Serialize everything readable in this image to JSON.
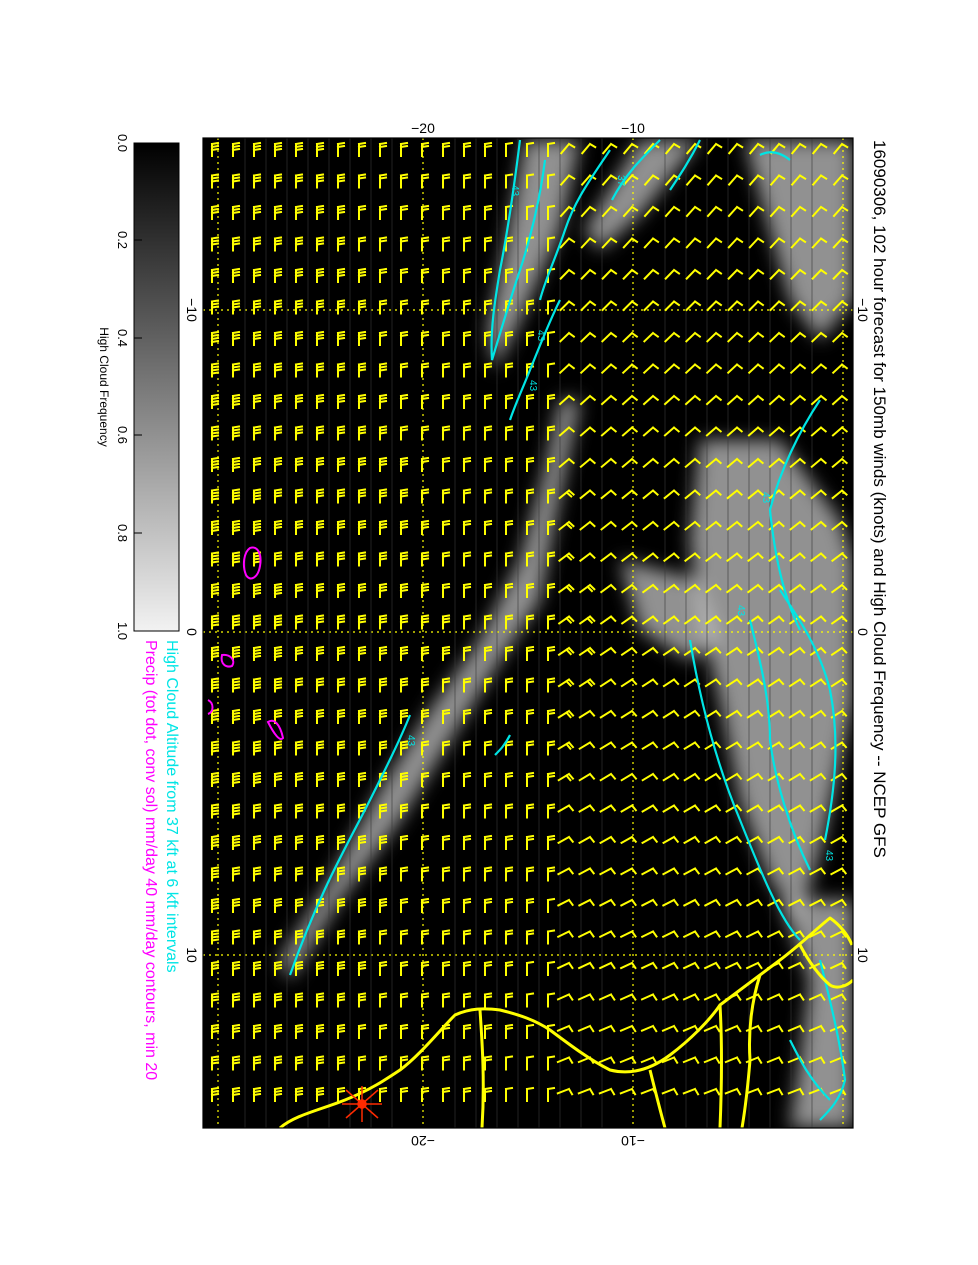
{
  "title": "16090306, 102 hour forecast for 150mb winds (knots) and High Cloud Frequency -- NCEP GFS",
  "legend_cloud_altitude": "High Cloud Altitude from 37 kft at 6 kft intervals",
  "legend_precip": "Precip (tot dot, conv sol) mm/day 40 mm/day contours, min 20",
  "colorbar": {
    "label": "High Cloud Frequency",
    "ticks": [
      "0.0",
      "0.2",
      "0.4",
      "0.6",
      "0.8",
      "1.0"
    ]
  },
  "axis_top_ticks": [
    "−20",
    "−10"
  ],
  "axis_bottom_ticks": [
    "−20",
    "−10"
  ],
  "axis_left_ticks": [
    "−10",
    "0",
    "10"
  ],
  "axis_right_ticks": [
    "−10",
    "0",
    "10"
  ],
  "contour_labels": [
    "43",
    "37",
    "43",
    "43",
    "43",
    "43",
    "43",
    "43"
  ],
  "colors": {
    "background": "#000000",
    "wind_barbs": "#ffff00",
    "cloud_altitude_contours": "#00e5e5",
    "precip_contours": "#ff00ff",
    "coastline": "#ffff00",
    "marker": "#ff2a00"
  }
}
